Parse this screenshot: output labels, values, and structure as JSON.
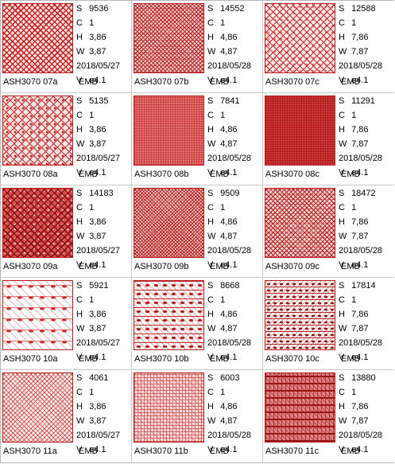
{
  "labels": {
    "s": "S",
    "c": "C",
    "h": "H",
    "w": "W",
    "v": "V"
  },
  "colors": {
    "thread": "#c62828",
    "border": "#c8c8c8"
  },
  "designs": [
    {
      "code": "07a",
      "caption": "ASH3070  07a",
      "format": "EMB",
      "s": "9536",
      "c": "1",
      "h": "3,86",
      "w": "3,87",
      "date": "2018/05/27",
      "v": "e4.1"
    },
    {
      "code": "07b",
      "caption": "ASH3070  07b",
      "format": "EMB",
      "s": "14552",
      "c": "1",
      "h": "4,86",
      "w": "4,87",
      "date": "2018/05/28",
      "v": "e4.1"
    },
    {
      "code": "07c",
      "caption": "ASH3070  07c",
      "format": "EMB",
      "s": "12588",
      "c": "1",
      "h": "7,86",
      "w": "7,87",
      "date": "2018/05/28",
      "v": "e4.1"
    },
    {
      "code": "08a",
      "caption": "ASH3070  08a",
      "format": "EMB",
      "s": "5135",
      "c": "1",
      "h": "3,86",
      "w": "3,87",
      "date": "2018/05/27",
      "v": "e4.1"
    },
    {
      "code": "08b",
      "caption": "ASH3070  08b",
      "format": "EMB",
      "s": "7841",
      "c": "1",
      "h": "4,86",
      "w": "4,87",
      "date": "2018/05/28",
      "v": "e4.1"
    },
    {
      "code": "08c",
      "caption": "ASH3070  08c",
      "format": "EMB",
      "s": "11291",
      "c": "1",
      "h": "7,86",
      "w": "7,87",
      "date": "2018/05/28",
      "v": "e4.1"
    },
    {
      "code": "09a",
      "caption": "ASH3070  09a",
      "format": "EMB",
      "s": "14183",
      "c": "1",
      "h": "3,86",
      "w": "3,87",
      "date": "2018/05/27",
      "v": "e4.1"
    },
    {
      "code": "09b",
      "caption": "ASH3070  09b",
      "format": "EMB",
      "s": "9509",
      "c": "1",
      "h": "4,86",
      "w": "4,87",
      "date": "2018/05/28",
      "v": "e4.1"
    },
    {
      "code": "09c",
      "caption": "ASH3070  09c",
      "format": "EMB",
      "s": "18472",
      "c": "1",
      "h": "7,86",
      "w": "7,87",
      "date": "2018/05/28",
      "v": "e4.1"
    },
    {
      "code": "10a",
      "caption": "ASH3070  10a",
      "format": "EMB",
      "s": "5921",
      "c": "1",
      "h": "3,86",
      "w": "3,87",
      "date": "2018/05/27",
      "v": "e4.1"
    },
    {
      "code": "10b",
      "caption": "ASH3070  10b",
      "format": "EMB",
      "s": "8668",
      "c": "1",
      "h": "4,86",
      "w": "4,87",
      "date": "2018/05/28",
      "v": "e4.1"
    },
    {
      "code": "10c",
      "caption": "ASH3070  10c",
      "format": "EMB",
      "s": "17814",
      "c": "1",
      "h": "7,86",
      "w": "7,87",
      "date": "2018/05/28",
      "v": "e4.1"
    },
    {
      "code": "11a",
      "caption": "ASH3070  11a",
      "format": "EMB",
      "s": "4061",
      "c": "1",
      "h": "3,86",
      "w": "3,87",
      "date": "2018/05/27",
      "v": "e4.1"
    },
    {
      "code": "11b",
      "caption": "ASH3070  11b",
      "format": "EMB",
      "s": "6003",
      "c": "1",
      "h": "4,86",
      "w": "4,87",
      "date": "2018/05/28",
      "v": "e4.1"
    },
    {
      "code": "11c",
      "caption": "ASH3070  11c",
      "format": "EMB",
      "s": "13880",
      "c": "1",
      "h": "7,86",
      "w": "7,87",
      "date": "2018/05/28",
      "v": "e4.1"
    }
  ]
}
